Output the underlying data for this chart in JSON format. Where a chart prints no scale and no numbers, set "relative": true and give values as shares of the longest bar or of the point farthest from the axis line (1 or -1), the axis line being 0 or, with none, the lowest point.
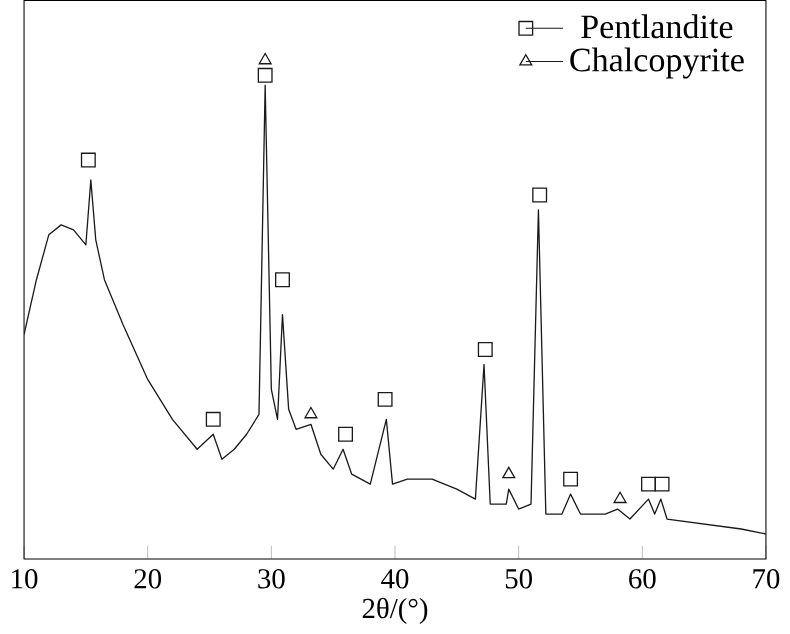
{
  "chart_data": {
    "type": "line",
    "relative": true,
    "xlabel": "2θ/(°)",
    "xlim": [
      10,
      70
    ],
    "xticks": [
      10,
      20,
      30,
      40,
      50,
      60,
      70
    ],
    "legend": "top right",
    "grid": false,
    "series": [
      {
        "color": "#1a1a1a",
        "x": [
          10,
          11,
          12,
          13,
          14,
          15,
          15.4,
          15.8,
          16.5,
          18,
          20,
          22,
          24,
          25.3,
          26,
          27,
          28,
          29,
          29.5,
          30,
          30.5,
          30.9,
          31.4,
          32,
          33.2,
          34,
          35,
          35.8,
          36.5,
          38,
          39.3,
          39.8,
          41,
          43,
          45,
          46.5,
          47.2,
          47.7,
          49,
          49.2,
          50,
          51,
          51.6,
          52.2,
          53.5,
          54.2,
          55,
          57,
          58,
          59,
          60.5,
          61,
          61.5,
          62,
          65,
          68,
          70
        ],
        "values": [
          0.45,
          0.56,
          0.65,
          0.67,
          0.66,
          0.63,
          0.76,
          0.64,
          0.56,
          0.47,
          0.36,
          0.28,
          0.22,
          0.25,
          0.2,
          0.22,
          0.25,
          0.29,
          0.95,
          0.34,
          0.28,
          0.49,
          0.3,
          0.26,
          0.27,
          0.21,
          0.18,
          0.22,
          0.17,
          0.15,
          0.28,
          0.15,
          0.16,
          0.16,
          0.14,
          0.12,
          0.39,
          0.11,
          0.11,
          0.14,
          0.1,
          0.11,
          0.7,
          0.09,
          0.09,
          0.13,
          0.09,
          0.09,
          0.1,
          0.08,
          0.12,
          0.09,
          0.12,
          0.08,
          0.07,
          0.06,
          0.05
        ]
      },
      {
        "type": "scatter",
        "name": "Pentlandite",
        "color": "#1a1a1a",
        "marker": "square",
        "x": [
          15.2,
          25.3,
          29.5,
          30.9,
          36.0,
          39.2,
          47.3,
          51.7,
          54.2,
          60.5,
          61.6
        ],
        "values": [
          0.8,
          0.28,
          0.97,
          0.56,
          0.25,
          0.32,
          0.42,
          0.73,
          0.16,
          0.15,
          0.15
        ]
      },
      {
        "type": "scatter",
        "name": "Chalcopyrite",
        "color": "#1a1a1a",
        "marker": "triangle",
        "x": [
          29.5,
          33.2,
          49.2,
          58.2
        ],
        "values": [
          1.0,
          0.29,
          0.17,
          0.12
        ]
      }
    ]
  }
}
